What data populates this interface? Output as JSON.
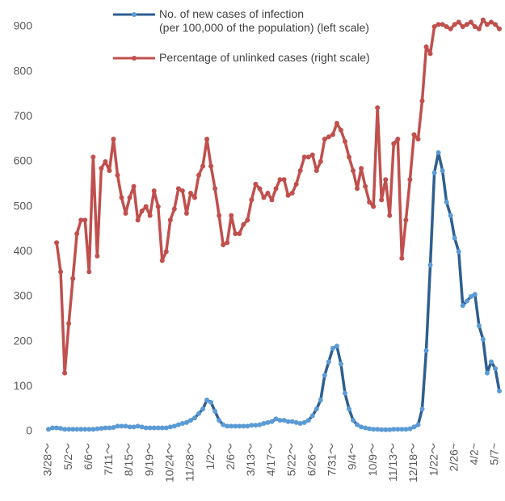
{
  "chart_data": {
    "type": "line",
    "categories": [
      "3/28～",
      null,
      null,
      null,
      null,
      "5/2～",
      null,
      null,
      null,
      null,
      "6/6～",
      null,
      null,
      null,
      null,
      "7/11～",
      null,
      null,
      null,
      null,
      "8/15～",
      null,
      null,
      null,
      null,
      "9/19～",
      null,
      null,
      null,
      null,
      "10/24～",
      null,
      null,
      null,
      null,
      "11/28～",
      null,
      null,
      null,
      null,
      "1/2～",
      null,
      null,
      null,
      null,
      "2/6～",
      null,
      null,
      null,
      null,
      "3/13～",
      null,
      null,
      null,
      null,
      "4/17～",
      null,
      null,
      null,
      null,
      "5/22～",
      null,
      null,
      null,
      null,
      "6/26～",
      null,
      null,
      null,
      null,
      "7/31～",
      null,
      null,
      null,
      null,
      "9/4～",
      null,
      null,
      null,
      null,
      "10/9～",
      null,
      null,
      null,
      null,
      "11/13～",
      null,
      null,
      null,
      null,
      "12/18～",
      null,
      null,
      null,
      null,
      "1/22～",
      null,
      null,
      null,
      null,
      "2/26~",
      null,
      null,
      null,
      null,
      "4/2~",
      null,
      null,
      null,
      null,
      "5/7~",
      null
    ],
    "series": [
      {
        "name": "No. of new cases of infection\n(per 100,000 of the population) (left scale)",
        "color": "#2e5f8f",
        "marker_color": "#5b9bd5",
        "values": [
          5,
          8,
          8,
          7,
          5,
          5,
          5,
          5,
          5,
          5,
          5,
          5,
          6,
          7,
          8,
          8,
          9,
          12,
          12,
          12,
          10,
          10,
          12,
          10,
          8,
          8,
          8,
          8,
          8,
          8,
          10,
          12,
          15,
          18,
          20,
          25,
          30,
          40,
          50,
          70,
          65,
          45,
          25,
          15,
          12,
          12,
          12,
          12,
          12,
          12,
          14,
          14,
          15,
          18,
          20,
          22,
          28,
          25,
          25,
          22,
          22,
          20,
          18,
          20,
          25,
          35,
          50,
          70,
          125,
          155,
          185,
          190,
          150,
          85,
          50,
          25,
          15,
          10,
          8,
          6,
          5,
          5,
          4,
          4,
          4,
          5,
          5,
          5,
          5,
          6,
          10,
          15,
          50,
          180,
          370,
          575,
          620,
          580,
          510,
          480,
          430,
          400,
          280,
          290,
          300,
          305,
          235,
          205,
          130,
          155,
          140,
          90
        ]
      },
      {
        "name": "Percentage of unlinked cases (right scale)",
        "color": "#c0504d",
        "marker_color": "#c0504d",
        "axis": "y2",
        "values": [
          null,
          null,
          420,
          355,
          130,
          240,
          340,
          440,
          470,
          470,
          355,
          610,
          390,
          585,
          600,
          580,
          650,
          570,
          520,
          485,
          520,
          545,
          470,
          490,
          500,
          480,
          535,
          500,
          380,
          400,
          470,
          495,
          540,
          535,
          485,
          530,
          520,
          570,
          590,
          650,
          590,
          540,
          480,
          415,
          420,
          480,
          440,
          440,
          460,
          470,
          515,
          550,
          540,
          520,
          530,
          515,
          540,
          560,
          560,
          525,
          530,
          550,
          580,
          610,
          610,
          615,
          580,
          600,
          650,
          655,
          660,
          685,
          670,
          645,
          610,
          580,
          540,
          585,
          545,
          510,
          500,
          720,
          515,
          560,
          480,
          640,
          650,
          385,
          470,
          560,
          660,
          650,
          735,
          855,
          840,
          900,
          905,
          905,
          900,
          895,
          905,
          910,
          900,
          905,
          910,
          900,
          895,
          915,
          905,
          910,
          905,
          895
        ]
      }
    ],
    "ylim": [
      0,
      900
    ],
    "yticks": [
      0,
      100,
      200,
      300,
      400,
      500,
      600,
      700,
      800,
      900
    ],
    "y2lim": [
      0,
      900
    ],
    "grid": false
  }
}
